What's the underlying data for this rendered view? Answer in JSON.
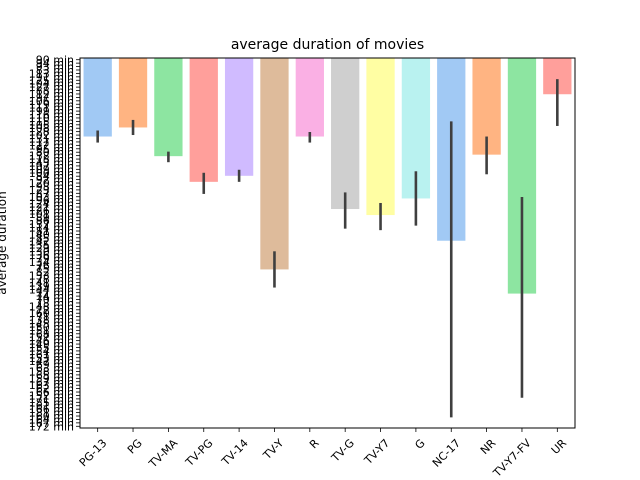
{
  "chart_data": {
    "type": "bar",
    "title": "average duration of movies",
    "xlabel": "",
    "ylabel": "average duration",
    "y_inverted": true,
    "ylim": [
      0,
      245
    ],
    "categories": [
      "PG-13",
      "PG",
      "TV-MA",
      "TV-PG",
      "TV-14",
      "TV-Y",
      "R",
      "TV-G",
      "TV-Y7",
      "G",
      "NC-17",
      "NR",
      "TV-Y7-FV",
      "UR"
    ],
    "values": [
      52,
      46,
      65,
      82,
      78,
      140,
      52,
      100,
      104,
      93,
      121,
      64,
      156,
      24
    ],
    "error_low": [
      48,
      41,
      62,
      76,
      74,
      128,
      49,
      89,
      96,
      75,
      42,
      52,
      92,
      14
    ],
    "error_high": [
      56,
      51,
      69,
      90,
      82,
      152,
      56,
      113,
      114,
      111,
      238,
      77,
      225,
      45
    ],
    "colors": [
      "#a1c9f4",
      "#ffb482",
      "#8de5a1",
      "#ff9f9b",
      "#d0bbff",
      "#debb9b",
      "#fab0e4",
      "#cfcfcf",
      "#fffea3",
      "#b9f2f0",
      "#a1c9f4",
      "#ffb482",
      "#8de5a1",
      "#ff9f9b"
    ],
    "y_tick_labels": [
      "90 min",
      "94 min",
      "93 min",
      "83 min",
      "113 min",
      "91 min",
      "125 min",
      "104 min",
      "127 min",
      "88 min",
      "112 min",
      "97 min",
      "106 min",
      "119 min",
      "111 min",
      "99 min",
      "116 min",
      "110 min",
      "115 min",
      "105 min",
      "108 min",
      "128 min",
      "102 min",
      "131 min",
      "117 min",
      "122 min",
      "95 min",
      "80 min",
      "132 min",
      "118 min",
      "143 min",
      "107 min",
      "109 min",
      "100 min",
      "84 min",
      "92 min",
      "120 min",
      "98 min",
      "123 min",
      "87 min",
      "103 min",
      "96 min",
      "124 min",
      "121 min",
      "126 min",
      "101 min",
      "89 min",
      "86 min",
      "137 min",
      "114 min",
      "81 min",
      "140 min",
      "85 min",
      "142 min",
      "135 min",
      "129 min",
      "130 min",
      "136 min",
      "79 min",
      "134 min",
      "76 min",
      "75 min",
      "82 min",
      "133 min",
      "78 min",
      "141 min",
      "139 min",
      "144 min",
      "77 min",
      "74 min",
      "70 min",
      "73 min",
      "148 min",
      "72 min",
      "160 min",
      "71 min",
      "138 min",
      "145 min",
      "150 min",
      "151 min",
      "68 min",
      "157 min",
      "146 min",
      "149 min",
      "155 min",
      "154 min",
      "161 min",
      "153 min",
      "147 min",
      "69 min",
      "63 min",
      "158 min",
      "65 min",
      "159 min",
      "67 min",
      "163 min",
      "62 min",
      "66 min",
      "152 min",
      "171 min",
      "185 min",
      "61 min",
      "166 min",
      "181 min",
      "60 min",
      "164 min",
      "167 min",
      "172 min"
    ]
  }
}
